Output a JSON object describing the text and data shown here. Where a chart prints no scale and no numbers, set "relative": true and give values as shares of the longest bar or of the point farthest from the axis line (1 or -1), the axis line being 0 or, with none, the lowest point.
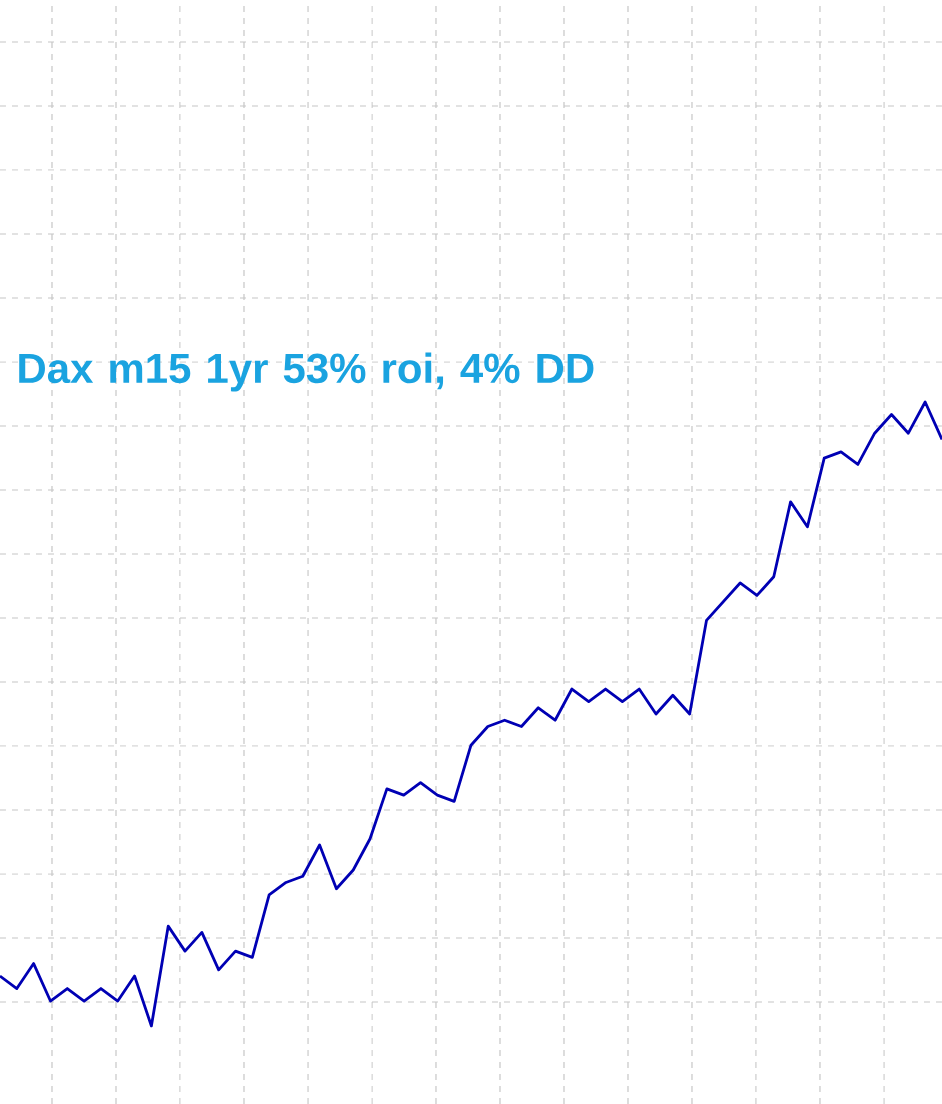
{
  "chart_data": {
    "type": "line",
    "title": "Dax m15 1yr 53% roi, 4% DD",
    "relative": true,
    "grid": true,
    "color": "#0000b4",
    "categories": [
      null,
      null,
      null,
      null,
      null,
      null,
      null,
      null,
      null,
      null,
      null,
      null,
      null,
      null,
      null,
      null,
      null,
      null,
      null,
      null,
      null,
      null,
      null,
      null,
      null,
      null,
      null,
      null,
      null,
      null,
      null,
      null,
      null,
      null,
      null,
      null,
      null,
      null,
      null,
      null,
      null,
      null,
      null,
      null,
      null,
      null,
      null,
      null,
      null,
      null,
      null,
      null,
      null,
      null,
      null,
      null,
      null
    ],
    "values": [
      0.08,
      0.06,
      0.1,
      0.04,
      0.06,
      0.04,
      0.06,
      0.04,
      0.08,
      0,
      0.16,
      0.12,
      0.15,
      0.09,
      0.12,
      0.11,
      0.21,
      0.23,
      0.24,
      0.29,
      0.22,
      0.25,
      0.3,
      0.38,
      0.37,
      0.39,
      0.37,
      0.36,
      0.45,
      0.48,
      0.49,
      0.48,
      0.51,
      0.49,
      0.54,
      0.52,
      0.54,
      0.52,
      0.54,
      0.5,
      0.53,
      0.5,
      0.65,
      0.68,
      0.71,
      0.69,
      0.72,
      0.84,
      0.8,
      0.91,
      0.92,
      0.9,
      0.95,
      0.98,
      0.95,
      1,
      0.94
    ]
  }
}
